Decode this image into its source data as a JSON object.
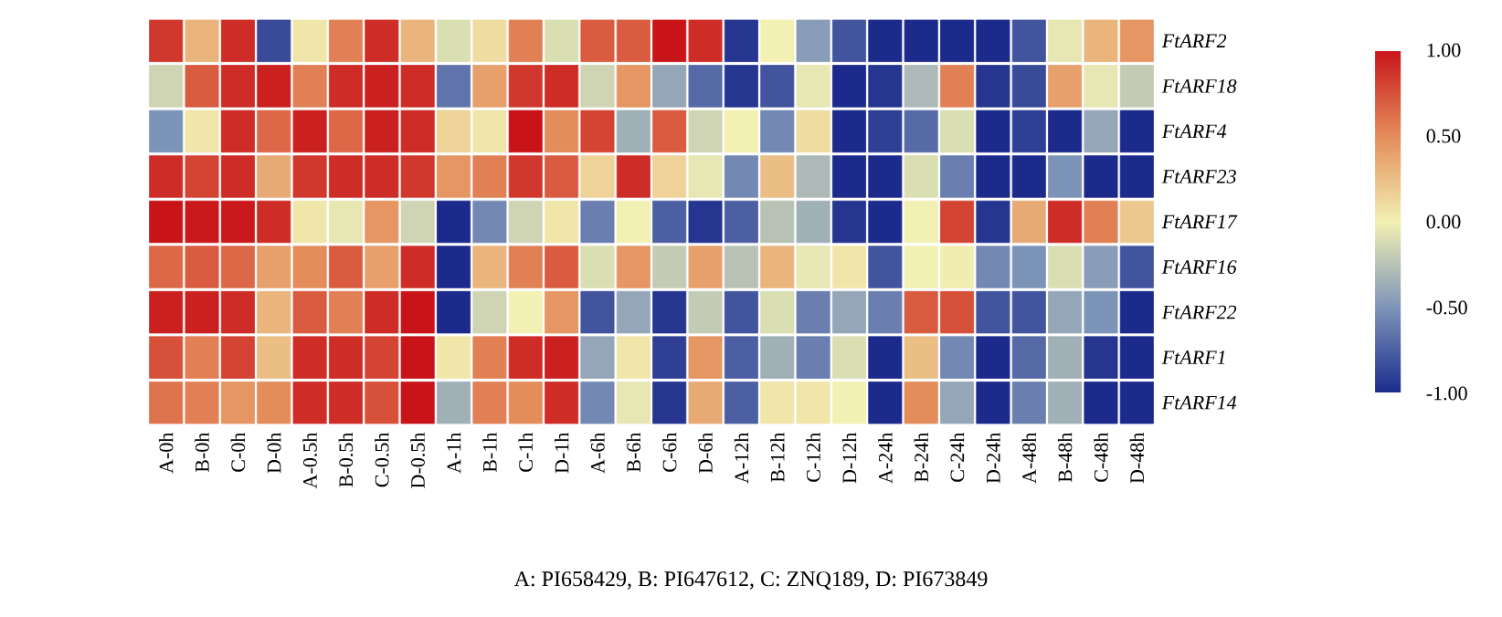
{
  "chart_data": {
    "type": "heatmap",
    "categories": [
      "A-0h",
      "B-0h",
      "C-0h",
      "D-0h",
      "A-0.5h",
      "B-0.5h",
      "C-0.5h",
      "D-0.5h",
      "A-1h",
      "B-1h",
      "C-1h",
      "D-1h",
      "A-6h",
      "B-6h",
      "C-6h",
      "D-6h",
      "A-12h",
      "B-12h",
      "C-12h",
      "D-12h",
      "A-24h",
      "B-24h",
      "C-24h",
      "D-24h",
      "A-48h",
      "B-48h",
      "C-48h",
      "D-48h"
    ],
    "y_categories": [
      "FtARF2",
      "FtARF18",
      "FtARF4",
      "FtARF23",
      "FtARF17",
      "FtARF16",
      "FtARF22",
      "FtARF1",
      "FtARF14"
    ],
    "cells": [
      [
        0.85,
        0.3,
        0.9,
        -0.85,
        0.05,
        0.55,
        0.9,
        0.3,
        -0.1,
        0.1,
        0.55,
        -0.1,
        0.7,
        0.7,
        1.0,
        0.9,
        -0.95,
        0.0,
        -0.45,
        -0.8,
        -1,
        -1,
        -1,
        -1,
        -0.8,
        -0.05,
        0.3,
        0.45
      ],
      [
        -0.15,
        0.7,
        0.9,
        0.95,
        0.55,
        0.9,
        0.95,
        0.9,
        -0.65,
        0.4,
        0.85,
        0.9,
        -0.15,
        0.45,
        -0.4,
        -0.7,
        -0.95,
        -0.8,
        -0.05,
        -1,
        -0.95,
        -0.3,
        0.55,
        -0.95,
        -0.85,
        0.4,
        -0.05,
        -0.2
      ],
      [
        -0.5,
        0.05,
        0.9,
        0.65,
        0.95,
        0.65,
        0.95,
        0.9,
        0.15,
        0.05,
        1.0,
        0.5,
        0.8,
        -0.35,
        0.7,
        -0.15,
        0.0,
        -0.55,
        0.1,
        -1,
        -0.9,
        -0.7,
        -0.1,
        -1,
        -0.9,
        -1,
        -0.4,
        -1
      ],
      [
        0.9,
        0.8,
        0.9,
        0.35,
        0.85,
        0.9,
        0.9,
        0.85,
        0.45,
        0.55,
        0.85,
        0.7,
        0.15,
        0.9,
        0.15,
        -0.05,
        -0.55,
        0.25,
        -0.3,
        -1,
        -1,
        -0.1,
        -0.6,
        -1,
        -1,
        -0.5,
        -1,
        -1
      ],
      [
        1.0,
        0.98,
        0.98,
        0.9,
        0.05,
        -0.05,
        0.45,
        -0.15,
        -1,
        -0.55,
        -0.15,
        0.05,
        -0.6,
        0.0,
        -0.75,
        -0.95,
        -0.75,
        -0.25,
        -0.35,
        -0.95,
        -1,
        0.0,
        0.8,
        -0.95,
        0.35,
        0.9,
        0.55,
        0.2
      ],
      [
        0.65,
        0.7,
        0.65,
        0.4,
        0.5,
        0.7,
        0.4,
        0.9,
        -1,
        0.3,
        0.55,
        0.7,
        -0.1,
        0.45,
        -0.2,
        0.4,
        -0.25,
        0.3,
        -0.05,
        0.05,
        -0.8,
        0.0,
        0.02,
        -0.55,
        -0.5,
        -0.1,
        -0.45,
        -0.8
      ],
      [
        0.95,
        0.95,
        0.9,
        0.3,
        0.7,
        0.55,
        0.9,
        1.0,
        -1,
        -0.15,
        0.0,
        0.45,
        -0.8,
        -0.4,
        -0.95,
        -0.2,
        -0.8,
        -0.1,
        -0.6,
        -0.4,
        -0.6,
        0.7,
        0.75,
        -0.8,
        -0.8,
        -0.4,
        -0.5,
        -1
      ],
      [
        0.75,
        0.55,
        0.8,
        0.25,
        0.9,
        0.9,
        0.8,
        1.0,
        0.05,
        0.55,
        0.9,
        0.95,
        -0.4,
        0.05,
        -0.9,
        0.45,
        -0.75,
        -0.35,
        -0.6,
        -0.1,
        -1,
        0.25,
        -0.55,
        -1,
        -0.7,
        -0.35,
        -0.95,
        -1
      ],
      [
        0.6,
        0.55,
        0.45,
        0.5,
        0.9,
        0.9,
        0.75,
        1.0,
        -0.35,
        0.55,
        0.5,
        0.9,
        -0.55,
        -0.05,
        -0.95,
        0.35,
        -0.75,
        0.05,
        0.05,
        0.0,
        -1,
        0.5,
        -0.4,
        -1,
        -0.6,
        -0.35,
        -1,
        -1
      ]
    ],
    "clim": [
      -1,
      1
    ],
    "cticks": [
      {
        "value": -1,
        "label": "-1.00"
      },
      {
        "value": -0.5,
        "label": "-0.50"
      },
      {
        "value": 0,
        "label": "0.00"
      },
      {
        "value": 0.5,
        "label": "0.50"
      },
      {
        "value": 1,
        "label": "1.00"
      }
    ],
    "annotations": [
      "A: PI658429, B: PI647612, C: ZNQ189, D: PI673849"
    ]
  }
}
